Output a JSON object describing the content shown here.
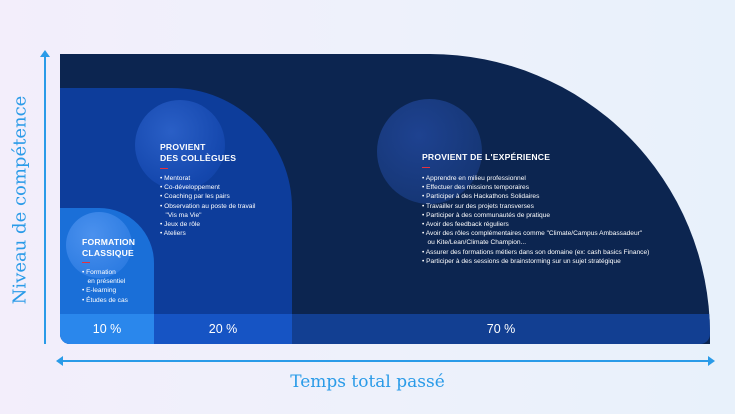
{
  "axes": {
    "y_label": "Niveau de compétence",
    "x_label": "Temps total passé"
  },
  "zones": {
    "classique": {
      "title_lines": [
        "FORMATION",
        "CLASSIQUE"
      ],
      "items": [
        "• Formation",
        "   en présentiel",
        "• E-learning",
        "• Études de cas"
      ],
      "percent": "10 %"
    },
    "collegues": {
      "title_lines": [
        "PROVIENT",
        "DES COLLÈGUES"
      ],
      "items": [
        "• Mentorat",
        "• Co-développement",
        "• Coaching par les pairs",
        "• Observation au poste de travail",
        "   \"Vis ma Vie\"",
        "• Jeux de rôle",
        "• Ateliers"
      ],
      "percent": "20 %"
    },
    "experience": {
      "title_lines": [
        "PROVIENT DE L'EXPÉRIENCE"
      ],
      "items": [
        "• Apprendre en milieu professionnel",
        "• Effectuer des missions temporaires",
        "• Participer à des Hackathons Solidaires",
        "• Travailler sur des projets transverses",
        "• Participer à des communautés de pratique",
        "• Avoir des feedback réguliers",
        "• Avoir des rôles complémentaires comme \"Climate/Campus Ambassadeur\"",
        "   ou Kite/Lean/Climate Champion...",
        "• Assurer des formations métiers dans son domaine (ex: cash basics Finance)",
        "• Participer à des sessions de brainstorming sur un sujet stratégique"
      ],
      "percent": "70 %"
    }
  },
  "colors": {
    "accent_axis": "#2a9be8",
    "dash": "#e8313d",
    "experience_bg": "#0c2550",
    "collegues_bg": "#0d3d9b",
    "classique_bg": "#1a6fd8"
  }
}
